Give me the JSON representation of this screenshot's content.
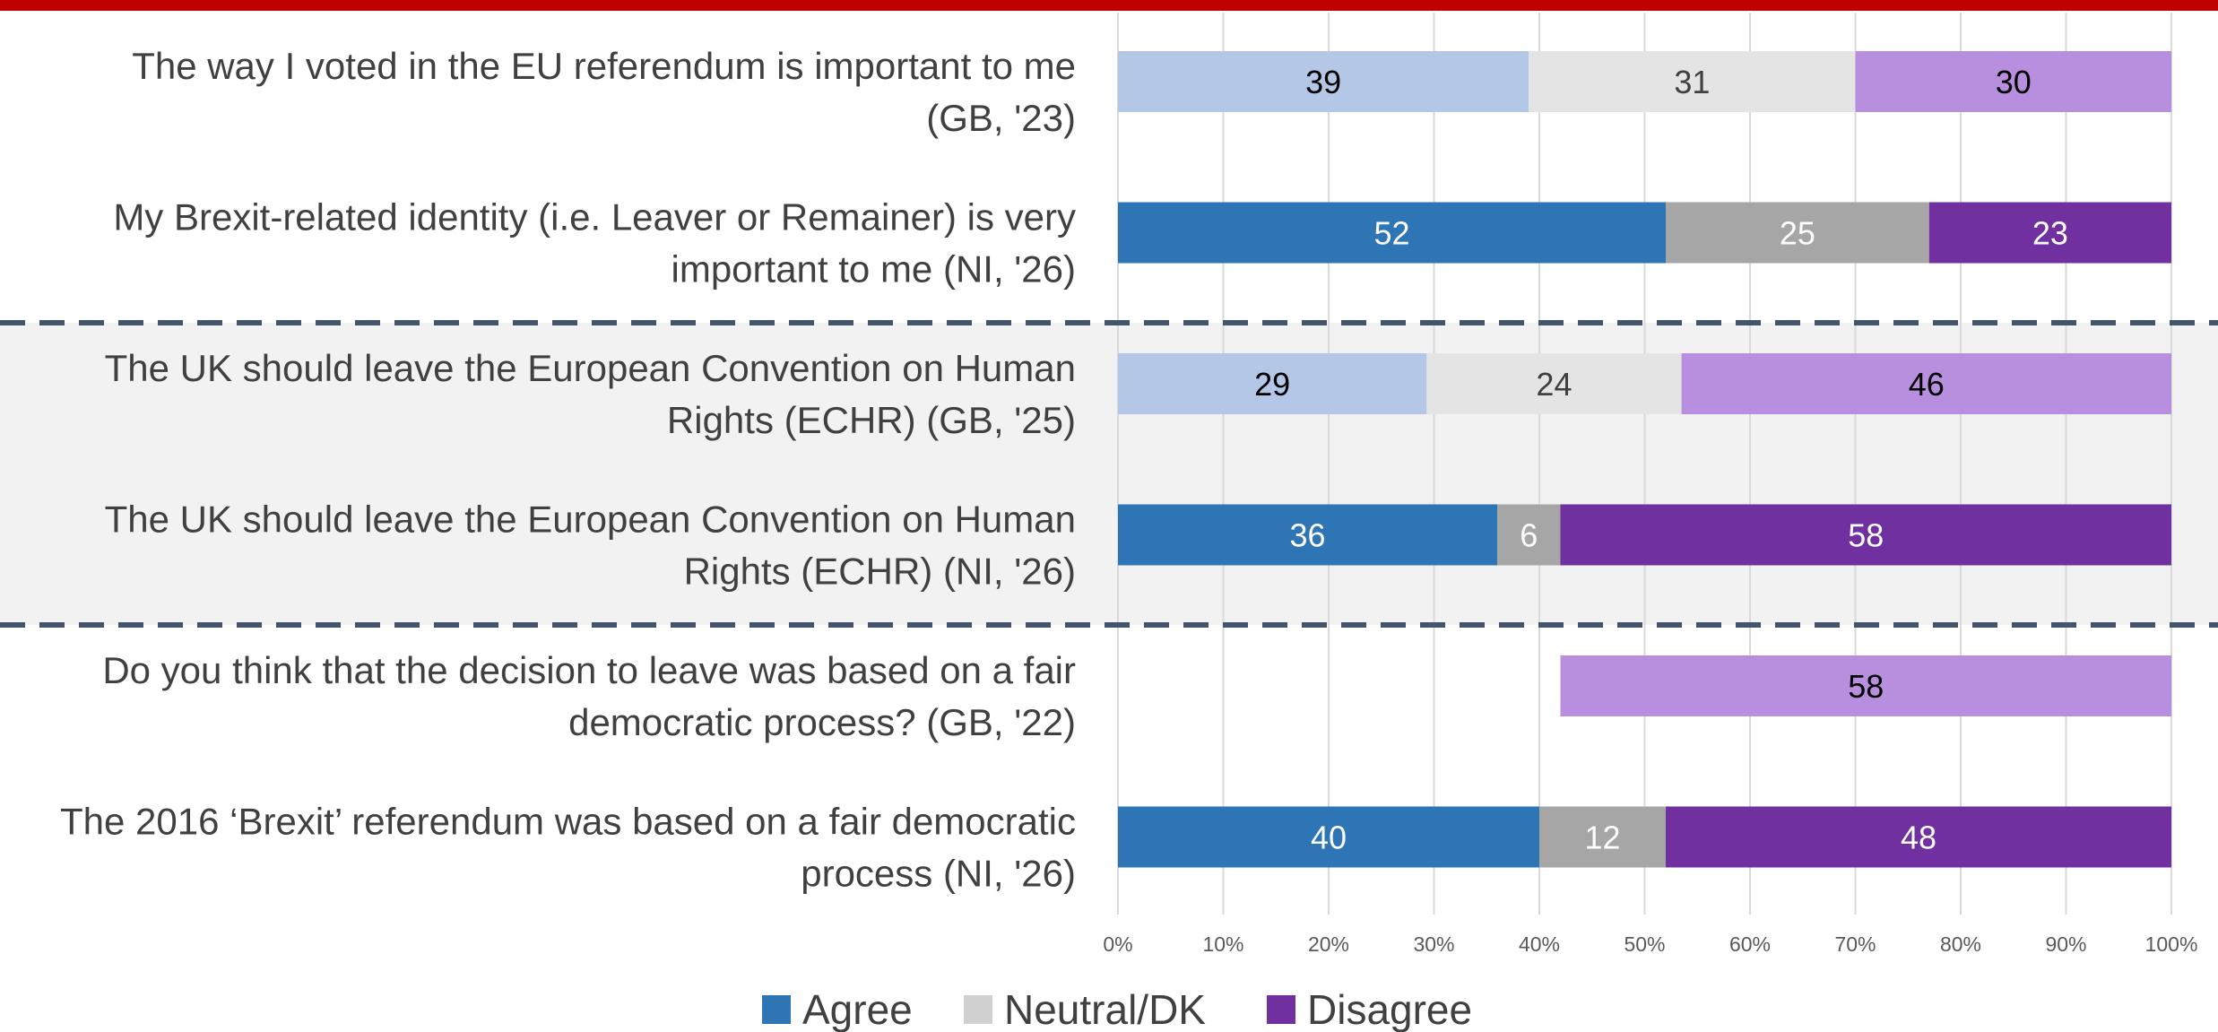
{
  "chart_data": {
    "type": "bar",
    "orientation": "horizontal",
    "stacked": true,
    "percent_axis": true,
    "xlim": [
      0,
      100
    ],
    "xticks": [
      "0%",
      "10%",
      "20%",
      "30%",
      "40%",
      "50%",
      "60%",
      "70%",
      "80%",
      "90%",
      "100%"
    ],
    "grid": true,
    "legend_position": "bottom",
    "title": "",
    "xlabel": "",
    "ylabel": "",
    "rows": [
      {
        "lines": [
          "The way I voted in the EU referendum is important to me",
          "(GB, '23)"
        ],
        "palette": "light",
        "highlight": false,
        "segments": [
          {
            "key": "agree",
            "value": 39,
            "label": "39"
          },
          {
            "key": "neutral",
            "value": 31,
            "label": "31"
          },
          {
            "key": "disagree",
            "value": 30,
            "label": "30"
          }
        ]
      },
      {
        "lines": [
          "My Brexit-related identity (i.e. Leaver or Remainer) is very",
          "important to me (NI, '26)"
        ],
        "palette": "dark",
        "highlight": false,
        "segments": [
          {
            "key": "agree",
            "value": 52,
            "label": "52"
          },
          {
            "key": "neutral",
            "value": 25,
            "label": "25"
          },
          {
            "key": "disagree",
            "value": 23,
            "label": "23"
          }
        ]
      },
      {
        "lines": [
          "The UK should leave the European Convention on Human",
          "Rights (ECHR) (GB, '25)"
        ],
        "palette": "light",
        "highlight": true,
        "segments": [
          {
            "key": "agree",
            "value": 29.3,
            "label": "29"
          },
          {
            "key": "neutral",
            "value": 24.2,
            "label": "24"
          },
          {
            "key": "disagree",
            "value": 46.5,
            "label": "46"
          }
        ]
      },
      {
        "lines": [
          "The UK should leave the European Convention on Human",
          "Rights (ECHR) (NI, '26)"
        ],
        "palette": "dark",
        "highlight": true,
        "segments": [
          {
            "key": "agree",
            "value": 36,
            "label": "36"
          },
          {
            "key": "neutral",
            "value": 6,
            "label": "6"
          },
          {
            "key": "disagree",
            "value": 58,
            "label": "58"
          }
        ]
      },
      {
        "lines": [
          "Do you think that the decision to leave was based on a fair",
          "democratic process? (GB, '22)"
        ],
        "palette": "light",
        "highlight": false,
        "segments": [
          {
            "key": "agree",
            "value": 42,
            "label": "",
            "hidden": true
          },
          {
            "key": "disagree",
            "value": 58,
            "label": "58"
          }
        ]
      },
      {
        "lines": [
          "The 2016 ‘Brexit’ referendum was based on a fair democratic",
          "process (NI, '26)"
        ],
        "palette": "dark",
        "highlight": false,
        "segments": [
          {
            "key": "agree",
            "value": 40,
            "label": "40"
          },
          {
            "key": "neutral",
            "value": 12,
            "label": "12"
          },
          {
            "key": "disagree",
            "value": 48,
            "label": "48"
          }
        ]
      }
    ],
    "legend": [
      {
        "key": "agree",
        "label": "Agree",
        "color": "#2e75b6"
      },
      {
        "key": "neutral",
        "label": "Neutral/DK",
        "color": "#d0d0d0"
      },
      {
        "key": "disagree",
        "label": "Disagree",
        "color": "#7030a0"
      }
    ],
    "colors": {
      "light": {
        "agree": "#b4c7e7",
        "neutral": "#e4e4e4",
        "disagree": "#b88ede",
        "text": "#000000"
      },
      "dark": {
        "agree": "#2e75b6",
        "neutral": "#a6a6a6",
        "disagree": "#7030a0",
        "text": "#ffffff"
      },
      "light_neutral_text_color": "#404040",
      "header_bar": "#c00000",
      "highlight_band": "#f2f2f2",
      "dashed_separator": "#44546a",
      "gridline": "#d9d9d9"
    }
  }
}
